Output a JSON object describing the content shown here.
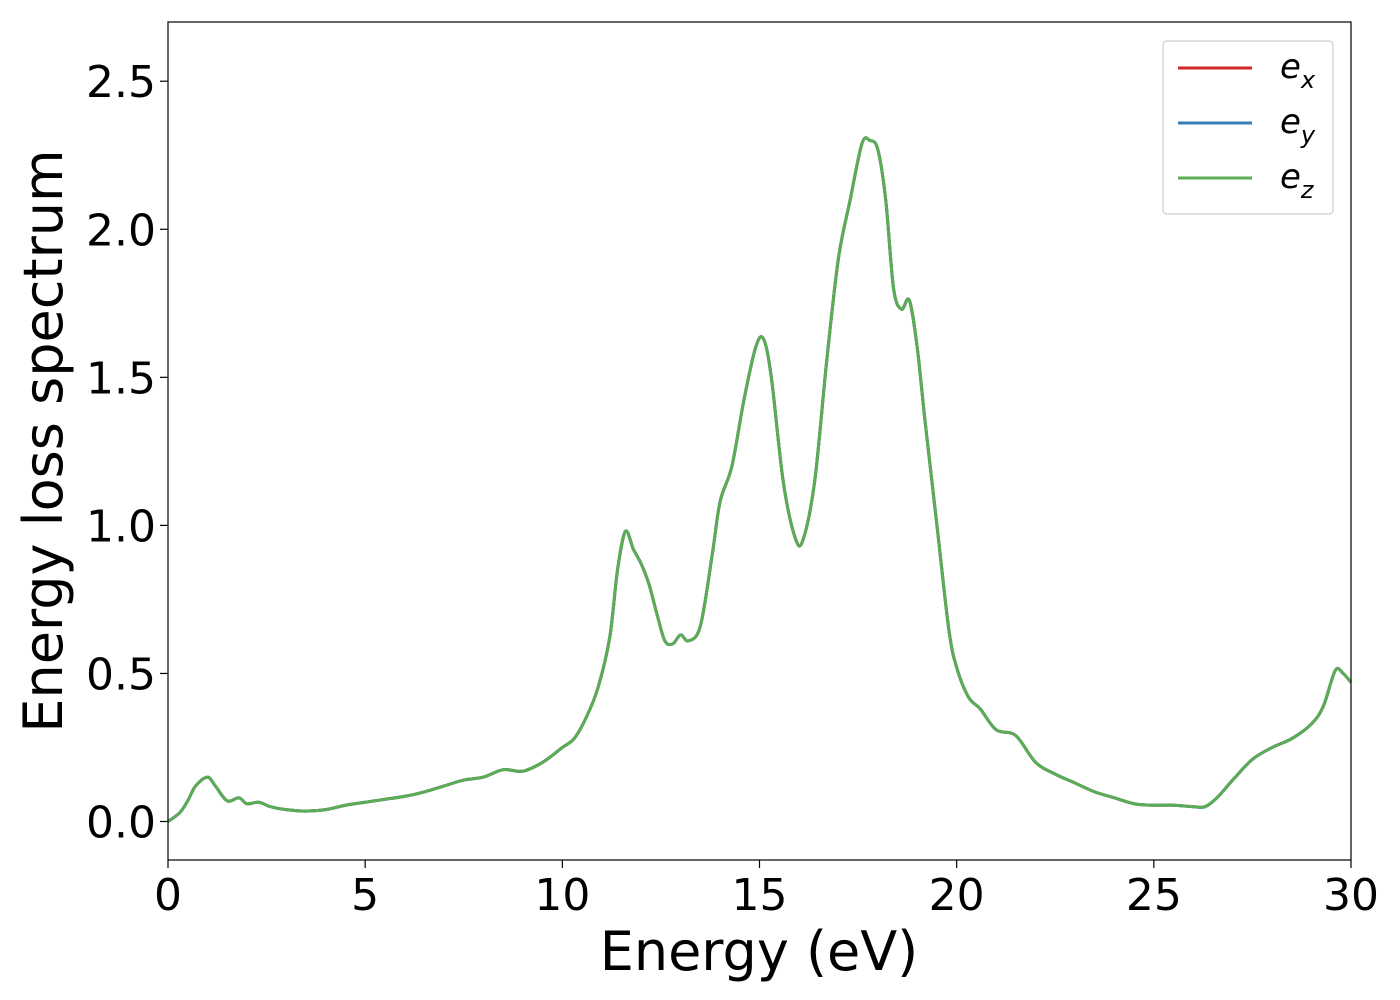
{
  "chart_data": {
    "type": "line",
    "title": "",
    "xlabel": "Energy (eV)",
    "ylabel": "Energy loss spectrum",
    "xlim": [
      0,
      30
    ],
    "ylim": [
      -0.13,
      2.7
    ],
    "xticks": [
      0,
      5,
      10,
      15,
      20,
      25,
      30
    ],
    "xtick_labels": [
      "0",
      "5",
      "10",
      "15",
      "20",
      "25",
      "30"
    ],
    "yticks": [
      0,
      0.5,
      1.0,
      1.5,
      2.0,
      2.5
    ],
    "ytick_labels": [
      "0.0",
      "0.5",
      "1.0",
      "1.5",
      "2.0",
      "2.5"
    ],
    "grid": false,
    "legend_position": "top-right",
    "x": [
      0,
      0.3,
      0.5,
      0.7,
      1.0,
      1.2,
      1.5,
      1.8,
      2.0,
      2.3,
      2.6,
      3.0,
      3.5,
      4.0,
      4.5,
      5.0,
      5.5,
      6.0,
      6.5,
      7.0,
      7.5,
      8.0,
      8.5,
      9.0,
      9.5,
      10.0,
      10.3,
      10.6,
      10.9,
      11.2,
      11.4,
      11.6,
      11.8,
      12.0,
      12.2,
      12.4,
      12.6,
      12.8,
      13.0,
      13.2,
      13.5,
      13.8,
      14.0,
      14.3,
      14.6,
      14.9,
      15.1,
      15.3,
      15.6,
      15.9,
      16.1,
      16.4,
      16.7,
      17.0,
      17.3,
      17.6,
      17.8,
      18.0,
      18.2,
      18.4,
      18.6,
      18.8,
      19.0,
      19.2,
      19.5,
      19.8,
      20.0,
      20.3,
      20.6,
      21.0,
      21.5,
      22.0,
      22.5,
      23.0,
      23.5,
      24.0,
      24.5,
      25.0,
      25.5,
      26.0,
      26.3,
      26.6,
      27.0,
      27.5,
      28.0,
      28.5,
      29.0,
      29.3,
      29.6,
      29.8,
      30.0
    ],
    "series": [
      {
        "name": "e_x",
        "label_base": "e",
        "label_sub": "x",
        "color": "#d62728",
        "values": [
          0.0,
          0.03,
          0.07,
          0.12,
          0.15,
          0.12,
          0.07,
          0.08,
          0.06,
          0.065,
          0.05,
          0.04,
          0.035,
          0.04,
          0.055,
          0.065,
          0.075,
          0.085,
          0.1,
          0.12,
          0.14,
          0.15,
          0.175,
          0.17,
          0.2,
          0.25,
          0.28,
          0.35,
          0.45,
          0.62,
          0.85,
          0.98,
          0.92,
          0.87,
          0.8,
          0.7,
          0.61,
          0.6,
          0.63,
          0.61,
          0.66,
          0.9,
          1.08,
          1.2,
          1.42,
          1.6,
          1.63,
          1.5,
          1.15,
          0.96,
          0.95,
          1.15,
          1.55,
          1.9,
          2.1,
          2.29,
          2.3,
          2.27,
          2.1,
          1.8,
          1.73,
          1.76,
          1.6,
          1.35,
          1.0,
          0.65,
          0.52,
          0.42,
          0.38,
          0.31,
          0.29,
          0.2,
          0.16,
          0.13,
          0.1,
          0.08,
          0.06,
          0.055,
          0.055,
          0.05,
          0.05,
          0.08,
          0.14,
          0.21,
          0.25,
          0.28,
          0.33,
          0.39,
          0.51,
          0.5,
          0.47
        ]
      },
      {
        "name": "e_y",
        "label_base": "e",
        "label_sub": "y",
        "color": "#3a7eb8",
        "values": [
          0.0,
          0.03,
          0.07,
          0.12,
          0.15,
          0.12,
          0.07,
          0.08,
          0.06,
          0.065,
          0.05,
          0.04,
          0.035,
          0.04,
          0.055,
          0.065,
          0.075,
          0.085,
          0.1,
          0.12,
          0.14,
          0.15,
          0.175,
          0.17,
          0.2,
          0.25,
          0.28,
          0.35,
          0.45,
          0.62,
          0.85,
          0.98,
          0.92,
          0.87,
          0.8,
          0.7,
          0.61,
          0.6,
          0.63,
          0.61,
          0.66,
          0.9,
          1.08,
          1.2,
          1.42,
          1.6,
          1.63,
          1.5,
          1.15,
          0.96,
          0.95,
          1.15,
          1.55,
          1.9,
          2.1,
          2.29,
          2.3,
          2.27,
          2.1,
          1.8,
          1.73,
          1.76,
          1.6,
          1.35,
          1.0,
          0.65,
          0.52,
          0.42,
          0.38,
          0.31,
          0.29,
          0.2,
          0.16,
          0.13,
          0.1,
          0.08,
          0.06,
          0.055,
          0.055,
          0.05,
          0.05,
          0.08,
          0.14,
          0.21,
          0.25,
          0.28,
          0.33,
          0.39,
          0.51,
          0.5,
          0.47
        ]
      },
      {
        "name": "e_z",
        "label_base": "e",
        "label_sub": "z",
        "color": "#5aac55",
        "values": [
          0.0,
          0.03,
          0.07,
          0.12,
          0.15,
          0.12,
          0.07,
          0.08,
          0.06,
          0.065,
          0.05,
          0.04,
          0.035,
          0.04,
          0.055,
          0.065,
          0.075,
          0.085,
          0.1,
          0.12,
          0.14,
          0.15,
          0.175,
          0.17,
          0.2,
          0.25,
          0.28,
          0.35,
          0.45,
          0.62,
          0.85,
          0.98,
          0.92,
          0.87,
          0.8,
          0.7,
          0.61,
          0.6,
          0.63,
          0.61,
          0.66,
          0.9,
          1.08,
          1.2,
          1.42,
          1.6,
          1.63,
          1.5,
          1.15,
          0.96,
          0.95,
          1.15,
          1.55,
          1.9,
          2.1,
          2.29,
          2.3,
          2.27,
          2.1,
          1.8,
          1.73,
          1.76,
          1.6,
          1.35,
          1.0,
          0.65,
          0.52,
          0.42,
          0.38,
          0.31,
          0.29,
          0.2,
          0.16,
          0.13,
          0.1,
          0.08,
          0.06,
          0.055,
          0.055,
          0.05,
          0.05,
          0.08,
          0.14,
          0.21,
          0.25,
          0.28,
          0.33,
          0.39,
          0.51,
          0.5,
          0.47
        ]
      }
    ]
  }
}
